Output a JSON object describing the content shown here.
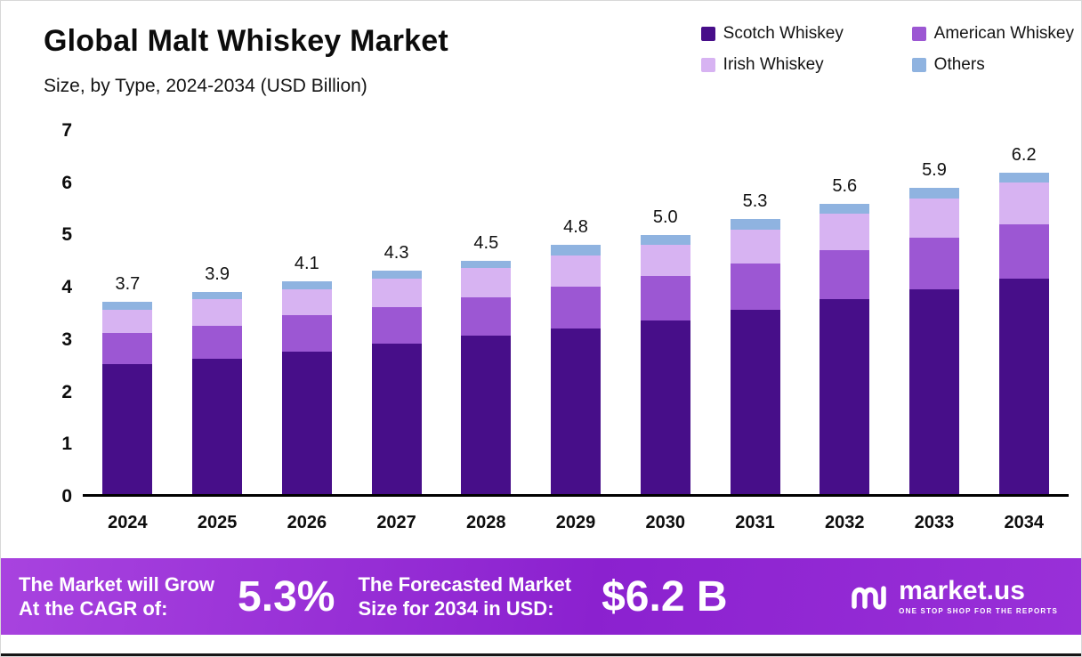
{
  "header": {
    "title": "Global Malt Whiskey Market",
    "subtitle": "Size, by Type, 2024-2034 (USD Billion)"
  },
  "legend": [
    {
      "label": "Scotch Whiskey",
      "color": "#470e89"
    },
    {
      "label": "American Whiskey",
      "color": "#9c57d3"
    },
    {
      "label": "Irish Whiskey",
      "color": "#d7b3f2"
    },
    {
      "label": "Others",
      "color": "#8fb3e0"
    }
  ],
  "chart_data": {
    "type": "bar",
    "stacked": true,
    "title": "Global Malt Whiskey Market",
    "subtitle": "Size, by Type, 2024-2034 (USD Billion)",
    "categories": [
      "2024",
      "2025",
      "2026",
      "2027",
      "2028",
      "2029",
      "2030",
      "2031",
      "2032",
      "2033",
      "2034"
    ],
    "series": [
      {
        "name": "Scotch Whiskey",
        "color": "#470e89",
        "values": [
          2.5,
          2.6,
          2.75,
          2.9,
          3.05,
          3.2,
          3.35,
          3.55,
          3.75,
          3.95,
          4.15
        ]
      },
      {
        "name": "American Whiskey",
        "color": "#9c57d3",
        "values": [
          0.6,
          0.65,
          0.7,
          0.7,
          0.75,
          0.8,
          0.85,
          0.9,
          0.95,
          1.0,
          1.05
        ]
      },
      {
        "name": "Irish Whiskey",
        "color": "#d7b3f2",
        "values": [
          0.45,
          0.5,
          0.5,
          0.55,
          0.55,
          0.6,
          0.6,
          0.65,
          0.7,
          0.75,
          0.8
        ]
      },
      {
        "name": "Others",
        "color": "#8fb3e0",
        "values": [
          0.15,
          0.15,
          0.15,
          0.15,
          0.15,
          0.2,
          0.2,
          0.2,
          0.2,
          0.2,
          0.2
        ]
      }
    ],
    "totals": [
      3.7,
      3.9,
      4.1,
      4.3,
      4.5,
      4.8,
      5.0,
      5.3,
      5.6,
      5.9,
      6.2
    ],
    "totals_display": [
      "3.7",
      "3.9",
      "4.1",
      "4.3",
      "4.5",
      "4.8",
      "5.0",
      "5.3",
      "5.6",
      "5.9",
      "6.2"
    ],
    "ylim": [
      0,
      7
    ],
    "yticks": [
      0,
      1,
      2,
      3,
      4,
      5,
      6,
      7
    ],
    "grid": false,
    "legend_position": "top-right",
    "xlabel": "",
    "ylabel": ""
  },
  "footer": {
    "cagr_line1": "The Market will Grow",
    "cagr_line2": "At the CAGR of:",
    "cagr_value": "5.3%",
    "forecast_line1": "The Forecasted Market",
    "forecast_line2": "Size for 2034 in USD:",
    "forecast_value": "$6.2 B",
    "brand": "market.us",
    "brand_tagline": "ONE STOP SHOP FOR THE REPORTS"
  }
}
